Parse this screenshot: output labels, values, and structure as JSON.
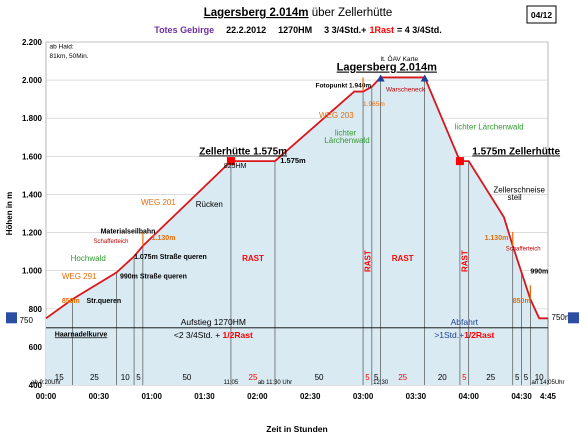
{
  "chart_data": {
    "type": "area",
    "title": "Lagersberg 2.014m",
    "title_suffix": "über Zellerhütte",
    "subtitle_group": "Totes Gebirge",
    "subtitle_date": "22.2.2012",
    "subtitle_hm": "1270HM",
    "subtitle_formula_a": "3 3/4Std.+",
    "subtitle_formula_rast": "1Rast",
    "subtitle_formula_b": "= 4 3/4Std.",
    "page_badge": "04/12",
    "ylabel": "Höhen in m",
    "xlabel": "Zeit in Stunden",
    "ylim": [
      400,
      2200
    ],
    "xlim": [
      0,
      285
    ],
    "yticks": [
      {
        "v": 400,
        "label": "400"
      },
      {
        "v": 600,
        "label": "600"
      },
      {
        "v": 800,
        "label": "800"
      },
      {
        "v": 1000,
        "label": "1.000"
      },
      {
        "v": 1200,
        "label": "1.200"
      },
      {
        "v": 1400,
        "label": "1.400"
      },
      {
        "v": 1600,
        "label": "1.600"
      },
      {
        "v": 1800,
        "label": "1.800"
      },
      {
        "v": 2000,
        "label": "2.000"
      },
      {
        "v": 2200,
        "label": "2.200"
      }
    ],
    "xticks": [
      {
        "v": 0,
        "label": "00:00"
      },
      {
        "v": 30,
        "label": "00:30"
      },
      {
        "v": 60,
        "label": "01:00"
      },
      {
        "v": 90,
        "label": "01:30"
      },
      {
        "v": 120,
        "label": "02:00"
      },
      {
        "v": 150,
        "label": "02:30"
      },
      {
        "v": 180,
        "label": "03:00"
      },
      {
        "v": 210,
        "label": "03:30"
      },
      {
        "v": 240,
        "label": "04:00"
      },
      {
        "v": 270,
        "label": "04:30"
      },
      {
        "v": 285,
        "label": "4:45"
      }
    ],
    "profile": [
      {
        "x": 0,
        "y": 750
      },
      {
        "x": 15,
        "y": 850
      },
      {
        "x": 40,
        "y": 990
      },
      {
        "x": 50,
        "y": 1075
      },
      {
        "x": 55,
        "y": 1130
      },
      {
        "x": 105,
        "y": 1575
      },
      {
        "x": 130,
        "y": 1575
      },
      {
        "x": 175,
        "y": 1940
      },
      {
        "x": 180,
        "y": 1940
      },
      {
        "x": 185,
        "y": 1965
      },
      {
        "x": 190,
        "y": 2014
      },
      {
        "x": 215,
        "y": 2014
      },
      {
        "x": 235,
        "y": 1575
      },
      {
        "x": 240,
        "y": 1575
      },
      {
        "x": 260,
        "y": 1280
      },
      {
        "x": 265,
        "y": 1130
      },
      {
        "x": 270,
        "y": 990
      },
      {
        "x": 275,
        "y": 850
      },
      {
        "x": 280,
        "y": 750
      },
      {
        "x": 285,
        "y": 750
      }
    ],
    "segments": [
      {
        "x1": 0,
        "x2": 15,
        "label": "15"
      },
      {
        "x1": 15,
        "x2": 40,
        "label": "25"
      },
      {
        "x1": 40,
        "x2": 50,
        "label": "10"
      },
      {
        "x1": 50,
        "x2": 55,
        "label": "5"
      },
      {
        "x1": 55,
        "x2": 105,
        "label": "50"
      },
      {
        "x1": 105,
        "x2": 130,
        "label": "25",
        "rast": true
      },
      {
        "x1": 130,
        "x2": 180,
        "label": "50"
      },
      {
        "x1": 180,
        "x2": 185,
        "label": "5",
        "rast": true
      },
      {
        "x1": 185,
        "x2": 190,
        "label": "5"
      },
      {
        "x1": 190,
        "x2": 215,
        "label": "25",
        "rast": true
      },
      {
        "x1": 215,
        "x2": 235,
        "label": "20"
      },
      {
        "x1": 235,
        "x2": 240,
        "label": "5",
        "rast": true
      },
      {
        "x1": 240,
        "x2": 265,
        "label": "25"
      },
      {
        "x1": 265,
        "x2": 270,
        "label": "5"
      },
      {
        "x1": 270,
        "x2": 275,
        "label": "5"
      },
      {
        "x1": 275,
        "x2": 285,
        "label": "10"
      }
    ],
    "vlines": [
      15,
      40,
      50,
      55,
      105,
      130,
      180,
      185,
      190,
      215,
      235,
      240,
      265,
      270,
      275,
      285
    ],
    "rast_labels": [
      {
        "x": 117.5,
        "y": 1050,
        "text": "RAST",
        "vertical": false
      },
      {
        "x": 182.5,
        "y": 1050,
        "text": "RAST",
        "vertical": true
      },
      {
        "x": 202.5,
        "y": 1050,
        "text": "RAST",
        "vertical": false
      },
      {
        "x": 237.5,
        "y": 1050,
        "text": "RAST",
        "vertical": true
      }
    ],
    "time_labels": [
      {
        "x": 0,
        "text": "ab 9:20Uhr"
      },
      {
        "x": 105,
        "text": "11:05"
      },
      {
        "x": 130,
        "text": "ab 11:30 Uhr"
      },
      {
        "x": 190,
        "text": "12:30"
      },
      {
        "x": 285,
        "text": "an 14:05Uhr"
      }
    ],
    "aufstieg": {
      "x1": 0,
      "x2": 190,
      "label": "Aufstieg 1270HM",
      "sub_a": "<2 3/4Std. + ",
      "sub_b": "1/2Rast"
    },
    "abfahrt": {
      "x1": 190,
      "x2": 285,
      "label": "Abfahrt",
      "sub_a": ">1Std.+",
      "sub_b": "1/2Rast"
    },
    "annotations": [
      {
        "key": "haid",
        "text": "ab Haid:",
        "x": 2,
        "y": 2165,
        "size": 6.5,
        "color": "#000",
        "weight": "normal"
      },
      {
        "key": "haid2",
        "text": "81km, 50Min.",
        "x": 2,
        "y": 2115,
        "size": 6.5,
        "color": "#000",
        "weight": "normal"
      },
      {
        "key": "zellerhuette1",
        "text": "Zellerhütte 1.575m",
        "x": 87,
        "y": 1610,
        "size": 10,
        "color": "#000",
        "weight": "bold",
        "underline": true
      },
      {
        "key": "hm825",
        "text": "825HM",
        "x": 101,
        "y": 1540,
        "size": 7,
        "color": "#000",
        "weight": "normal"
      },
      {
        "key": "m1575a",
        "text": "1.575m",
        "x": 133,
        "y": 1565,
        "size": 7.5,
        "color": "#000",
        "weight": "bold"
      },
      {
        "key": "lagersberg",
        "text": "Lagersberg 2.014m",
        "x": 165,
        "y": 2050,
        "size": 11,
        "color": "#000",
        "weight": "bold",
        "underline": true
      },
      {
        "key": "oav",
        "text": "lt. ÖAV Karte",
        "x": 190,
        "y": 2100,
        "size": 6.5,
        "color": "#000",
        "weight": "normal"
      },
      {
        "key": "foto",
        "text": "Fotopunkt 1.940m",
        "x": 153,
        "y": 1960,
        "size": 6.5,
        "color": "#000",
        "weight": "bold"
      },
      {
        "key": "m1965",
        "text": "1.965m",
        "x": 180,
        "y": 1865,
        "size": 6.5,
        "color": "#e46c0a",
        "weight": "normal"
      },
      {
        "key": "warsch",
        "text": "Warscheneck",
        "x": 193,
        "y": 1940,
        "size": 6.5,
        "color": "#c00000",
        "weight": "normal"
      },
      {
        "key": "weg203",
        "text": "WEG 203",
        "x": 155,
        "y": 1800,
        "size": 8,
        "color": "#e46c0a",
        "weight": "normal"
      },
      {
        "key": "laerch1",
        "text": "lichter",
        "x": 164,
        "y": 1710,
        "size": 8,
        "color": "#339933",
        "weight": "normal"
      },
      {
        "key": "laerch1b",
        "text": "Lärchenwald",
        "x": 158,
        "y": 1670,
        "size": 8,
        "color": "#339933",
        "weight": "normal"
      },
      {
        "key": "laerch2",
        "text": "lichter Lärchenwald",
        "x": 232,
        "y": 1740,
        "size": 8,
        "color": "#339933",
        "weight": "normal"
      },
      {
        "key": "zellerhuette2",
        "text": "1.575m Zellerhütte",
        "x": 242,
        "y": 1610,
        "size": 10,
        "color": "#000",
        "weight": "bold",
        "underline": true
      },
      {
        "key": "zschneise",
        "text": "Zellerschneise",
        "x": 254,
        "y": 1410,
        "size": 8,
        "color": "#000",
        "weight": "normal"
      },
      {
        "key": "zschneise2",
        "text": "steil",
        "x": 262,
        "y": 1370,
        "size": 8,
        "color": "#000",
        "weight": "normal"
      },
      {
        "key": "ruecken",
        "text": "Rücken",
        "x": 85,
        "y": 1335,
        "size": 8,
        "color": "#000",
        "weight": "normal"
      },
      {
        "key": "weg201",
        "text": "WEG 201",
        "x": 54,
        "y": 1345,
        "size": 8,
        "color": "#e46c0a",
        "weight": "normal"
      },
      {
        "key": "matseil",
        "text": "Materialseilbahn",
        "x": 31,
        "y": 1195,
        "size": 7,
        "color": "#000",
        "weight": "bold"
      },
      {
        "key": "schaff1",
        "text": "Schafferteich",
        "x": 27,
        "y": 1145,
        "size": 6,
        "color": "#c00000",
        "weight": "normal"
      },
      {
        "key": "m1130a",
        "text": "1.130m",
        "x": 60,
        "y": 1160,
        "size": 7,
        "color": "#e46c0a",
        "weight": "bold"
      },
      {
        "key": "m1075",
        "text": "1.075m Straße queren",
        "x": 50,
        "y": 1060,
        "size": 7,
        "color": "#000",
        "weight": "bold"
      },
      {
        "key": "m990",
        "text": "990m Straße queren",
        "x": 42,
        "y": 960,
        "size": 7,
        "color": "#000",
        "weight": "bold"
      },
      {
        "key": "hochwald",
        "text": "Hochwald",
        "x": 14,
        "y": 1050,
        "size": 8,
        "color": "#339933",
        "weight": "normal"
      },
      {
        "key": "weg291",
        "text": "WEG 291",
        "x": 9,
        "y": 955,
        "size": 8,
        "color": "#e46c0a",
        "weight": "normal"
      },
      {
        "key": "m850",
        "text": "850m",
        "x": 9,
        "y": 830,
        "size": 7,
        "color": "#e46c0a",
        "weight": "bold"
      },
      {
        "key": "strq",
        "text": "Str.queren",
        "x": 23,
        "y": 830,
        "size": 7,
        "color": "#000",
        "weight": "bold"
      },
      {
        "key": "haarnadel",
        "text": "Haarnadelkurve",
        "x": 5,
        "y": 655,
        "size": 7,
        "color": "#000",
        "weight": "bold",
        "underline": true
      },
      {
        "key": "m1130b",
        "text": "1.130m",
        "x": 249,
        "y": 1160,
        "size": 7,
        "color": "#e46c0a",
        "weight": "bold"
      },
      {
        "key": "schaff2",
        "text": "Schafferteich",
        "x": 261,
        "y": 1105,
        "size": 6,
        "color": "#c00000",
        "weight": "normal"
      },
      {
        "key": "m990b",
        "text": "990m",
        "x": 275,
        "y": 985,
        "size": 7,
        "color": "#000",
        "weight": "bold"
      },
      {
        "key": "m850b",
        "text": "850m",
        "x": 265,
        "y": 830,
        "size": 7,
        "color": "#e46c0a",
        "weight": "bold"
      },
      {
        "key": "m750",
        "text": "750m",
        "x": 287,
        "y": 740,
        "size": 8,
        "color": "#000",
        "weight": "normal"
      },
      {
        "key": "p750",
        "text": "750",
        "x": -15,
        "y": 725,
        "size": 8,
        "color": "#000",
        "weight": "normal"
      }
    ],
    "colors": {
      "profile_line": "#d9161c",
      "fill": "#d9eaf3",
      "title_purple": "#7030a0",
      "rast_red": "#ff0000",
      "aufstieg_text": "#000000",
      "abfahrt_text": "#1f3f99",
      "axis": "#000000"
    }
  }
}
